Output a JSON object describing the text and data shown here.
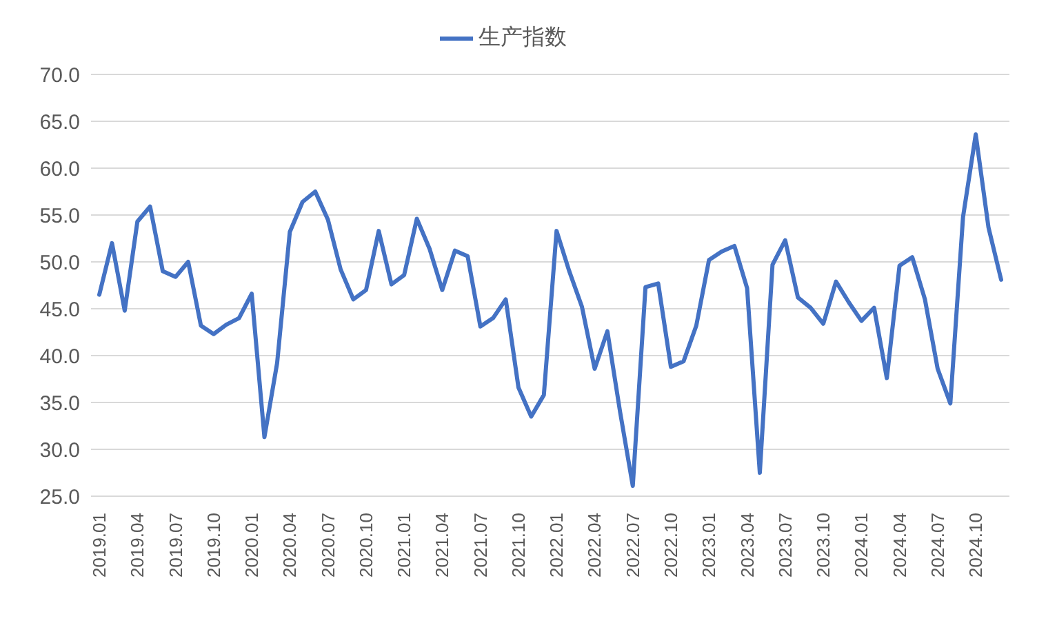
{
  "chart_data": {
    "type": "line",
    "categories": [
      "2019.01",
      null,
      null,
      "2019.04",
      null,
      null,
      "2019.07",
      null,
      null,
      "2019.10",
      null,
      null,
      "2020.01",
      null,
      null,
      "2020.04",
      null,
      null,
      "2020.07",
      null,
      null,
      "2020.10",
      null,
      null,
      "2021.01",
      null,
      null,
      "2021.04",
      null,
      null,
      "2021.07",
      null,
      null,
      "2021.10",
      null,
      null,
      "2022.01",
      null,
      null,
      "2022.04",
      null,
      null,
      "2022.07",
      null,
      null,
      "2022.10",
      null,
      null,
      "2023.01",
      null,
      null,
      "2023.04",
      null,
      null,
      "2023.07",
      null,
      null,
      "2023.10",
      null,
      null,
      "2024.01",
      null,
      null,
      "2024.04",
      null,
      null,
      "2024.07",
      null,
      null,
      "2024.10",
      null,
      null
    ],
    "series": [
      {
        "name": "生产指数",
        "color": "#4472c4",
        "values": [
          46.5,
          52.0,
          44.8,
          54.3,
          55.9,
          49.0,
          48.4,
          50.0,
          43.2,
          42.3,
          43.3,
          44.0,
          46.6,
          31.3,
          39.2,
          53.2,
          56.4,
          57.5,
          54.5,
          49.2,
          46.0,
          47.0,
          53.3,
          47.6,
          48.6,
          54.6,
          51.4,
          47.0,
          51.2,
          50.6,
          43.1,
          44.0,
          46.0,
          36.6,
          33.5,
          35.8,
          53.3,
          49.0,
          45.2,
          38.6,
          42.6,
          34.0,
          26.1,
          47.3,
          47.7,
          38.8,
          39.4,
          43.2,
          50.2,
          51.1,
          51.7,
          47.2,
          27.5,
          49.7,
          52.3,
          46.2,
          45.1,
          43.4,
          47.9,
          45.7,
          43.7,
          45.1,
          37.6,
          49.6,
          50.5,
          46.0,
          38.6,
          34.9,
          54.8,
          63.6,
          53.7,
          48.1
        ]
      }
    ],
    "ylim": [
      25,
      70
    ],
    "yticks": [
      {
        "value": 25,
        "label": "25.0"
      },
      {
        "value": 30,
        "label": "30.0"
      },
      {
        "value": 35,
        "label": "35.0"
      },
      {
        "value": 40,
        "label": "40.0"
      },
      {
        "value": 45,
        "label": "45.0"
      },
      {
        "value": 50,
        "label": "50.0"
      },
      {
        "value": 55,
        "label": "55.0"
      },
      {
        "value": 60,
        "label": "60.0"
      },
      {
        "value": 65,
        "label": "65.0"
      },
      {
        "value": 70,
        "label": "70.0"
      }
    ],
    "grid": "y",
    "legend": "top",
    "marker": "none",
    "line_style": "solid"
  }
}
